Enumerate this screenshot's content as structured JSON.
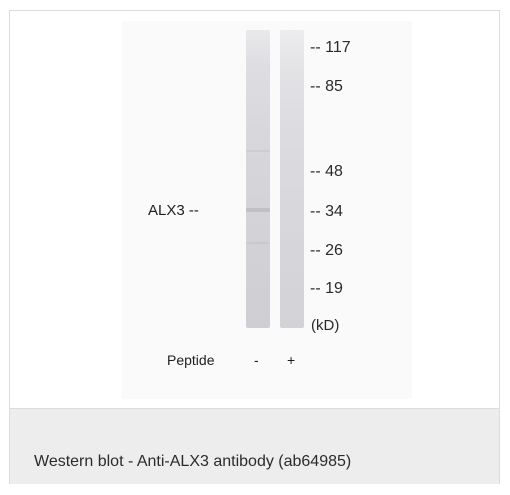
{
  "figure": {
    "protein_label": "ALX3 --",
    "markers": [
      {
        "label": "-- 117"
      },
      {
        "label": "-- 85"
      },
      {
        "label": "-- 48"
      },
      {
        "label": "-- 34"
      },
      {
        "label": "-- 26"
      },
      {
        "label": "-- 19"
      }
    ],
    "unit_label": "(kD)",
    "peptide": {
      "label": "Peptide",
      "lane_1": "-",
      "lane_2": "+"
    }
  },
  "caption": "Western blot - Anti-ALX3 antibody (ab64985)"
}
